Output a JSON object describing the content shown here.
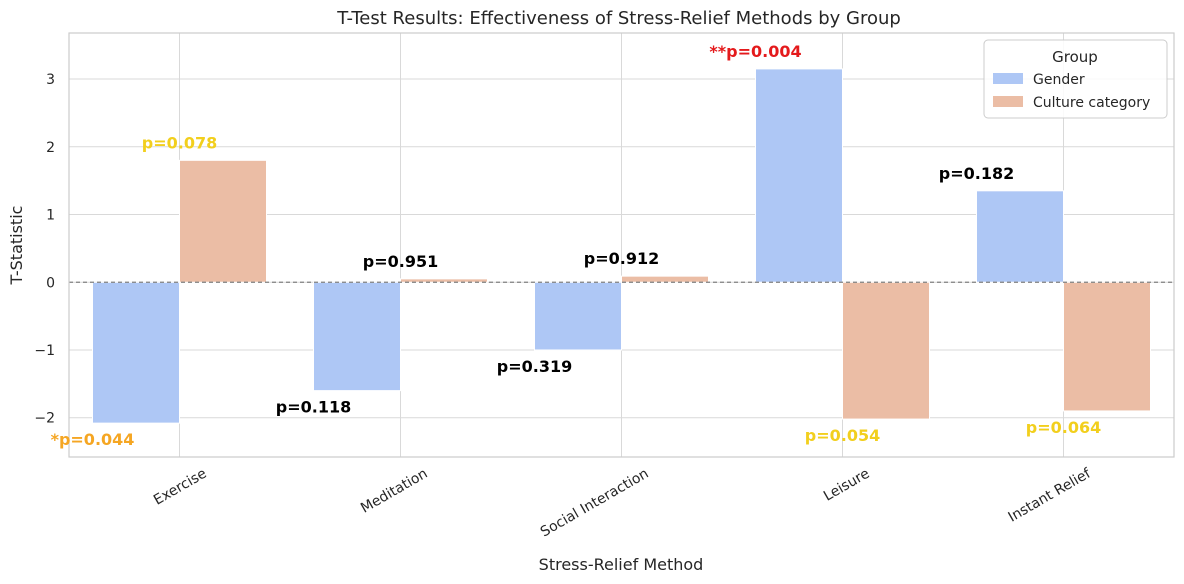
{
  "chart_data": {
    "type": "bar",
    "title": "T-Test Results: Effectiveness of Stress-Relief Methods by Group",
    "xlabel": "Stress-Relief Method",
    "ylabel": "T-Statistic",
    "ylim": [
      -2.58,
      3.68
    ],
    "yticks": [
      -2,
      -1,
      0,
      1,
      2,
      3
    ],
    "ytick_labels": [
      "−2",
      "−1",
      "0",
      "1",
      "2",
      "3"
    ],
    "grid": true,
    "legend_title": "Group",
    "legend_position": "top-right",
    "categories": [
      "Exercise",
      "Meditation",
      "Social Interaction",
      "Leisure",
      "Instant Relief"
    ],
    "series": [
      {
        "name": "Gender",
        "color": "#aec7f5",
        "values": [
          -2.08,
          -1.6,
          -1.0,
          3.15,
          1.35
        ],
        "annotations": [
          {
            "text": "*p=0.044",
            "color": "#f5a623"
          },
          {
            "text": "p=0.118",
            "color": "#000000"
          },
          {
            "text": "p=0.319",
            "color": "#000000"
          },
          {
            "text": "**p=0.004",
            "color": "#e41a1c"
          },
          {
            "text": "p=0.182",
            "color": "#000000"
          }
        ]
      },
      {
        "name": "Culture category",
        "color": "#ebbda5",
        "values": [
          1.8,
          0.05,
          0.09,
          -2.02,
          -1.9
        ],
        "annotations": [
          {
            "text": "p=0.078",
            "color": "#f2cf1d"
          },
          {
            "text": "p=0.951",
            "color": "#000000"
          },
          {
            "text": "p=0.912",
            "color": "#000000"
          },
          {
            "text": "p=0.054",
            "color": "#f2cf1d"
          },
          {
            "text": "p=0.064",
            "color": "#f2cf1d"
          }
        ]
      }
    ]
  }
}
